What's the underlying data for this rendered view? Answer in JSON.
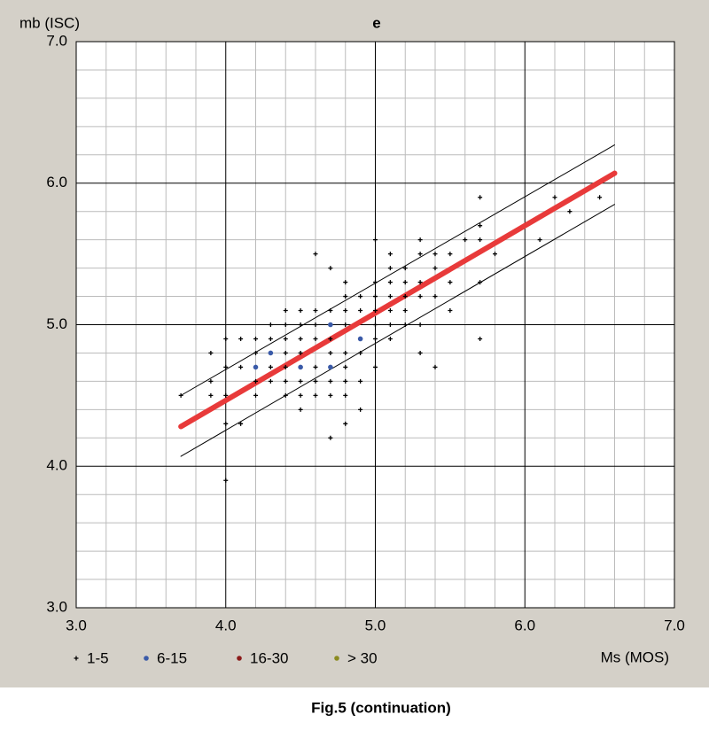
{
  "chart_data": {
    "type": "scatter",
    "title": "e",
    "y_label": "mb (ISC)",
    "x_label": "Ms (MOS)",
    "caption": "Fig.5 (continuation)",
    "xlim": [
      3.0,
      7.0
    ],
    "ylim": [
      3.0,
      7.0
    ],
    "xticks": [
      {
        "value": 3,
        "label": "3.0"
      },
      {
        "value": 4,
        "label": "4.0"
      },
      {
        "value": 5,
        "label": "5.0"
      },
      {
        "value": 6,
        "label": "6.0"
      },
      {
        "value": 7,
        "label": "7.0"
      }
    ],
    "yticks": [
      {
        "value": 3,
        "label": "3.0"
      },
      {
        "value": 4,
        "label": "4.0"
      },
      {
        "value": 5,
        "label": "5.0"
      },
      {
        "value": 6,
        "label": "6.0"
      },
      {
        "value": 7,
        "label": "7.0"
      }
    ],
    "xminorticks": [
      3.2,
      3.4,
      3.6,
      3.8,
      4.2,
      4.4,
      4.6,
      4.8,
      5.2,
      5.4,
      5.6,
      5.8,
      6.2,
      6.4,
      6.6,
      6.8
    ],
    "yminorticks": [
      3.2,
      3.4,
      3.6,
      3.8,
      4.2,
      4.4,
      4.6,
      4.8,
      5.2,
      5.4,
      5.6,
      5.8,
      6.2,
      6.4,
      6.6,
      6.8
    ],
    "grid": true,
    "series": [
      {
        "name": "1-5",
        "color": "#000000",
        "marker": "plus",
        "x": [
          3.7,
          3.9,
          3.9,
          3.9,
          4.0,
          4.0,
          4.0,
          4.0,
          4.0,
          4.1,
          4.1,
          4.1,
          4.2,
          4.2,
          4.2,
          4.2,
          4.3,
          4.3,
          4.3,
          4.3,
          4.4,
          4.4,
          4.4,
          4.4,
          4.4,
          4.4,
          4.4,
          4.5,
          4.5,
          4.5,
          4.5,
          4.5,
          4.5,
          4.5,
          4.6,
          4.6,
          4.6,
          4.6,
          4.6,
          4.6,
          4.6,
          4.7,
          4.7,
          4.7,
          4.7,
          4.7,
          4.7,
          4.7,
          4.8,
          4.8,
          4.8,
          4.8,
          4.8,
          4.8,
          4.8,
          4.8,
          4.8,
          4.9,
          4.9,
          4.9,
          4.9,
          4.9,
          5.0,
          5.0,
          5.0,
          5.0,
          5.0,
          5.0,
          5.0,
          5.1,
          5.1,
          5.1,
          5.1,
          5.1,
          5.1,
          5.1,
          5.2,
          5.2,
          5.2,
          5.2,
          5.2,
          5.3,
          5.3,
          5.3,
          5.3,
          5.3,
          5.3,
          5.4,
          5.4,
          5.4,
          5.4,
          5.5,
          5.5,
          5.5,
          5.6,
          5.7,
          5.7,
          5.7,
          5.7,
          5.7,
          5.8,
          6.1,
          6.2,
          6.3,
          6.5
        ],
        "values": [
          4.5,
          4.8,
          4.6,
          4.5,
          4.9,
          4.7,
          4.5,
          4.3,
          3.9,
          4.9,
          4.7,
          4.3,
          4.9,
          4.8,
          4.5,
          4.6,
          5.0,
          4.9,
          4.7,
          4.6,
          5.1,
          5.0,
          4.9,
          4.8,
          4.7,
          4.6,
          4.5,
          5.1,
          5.0,
          4.9,
          4.8,
          4.6,
          4.5,
          4.4,
          5.5,
          5.1,
          5.0,
          4.9,
          4.7,
          4.6,
          4.5,
          5.4,
          5.1,
          4.9,
          4.8,
          4.6,
          4.5,
          4.2,
          5.3,
          5.2,
          5.1,
          5.0,
          4.8,
          4.7,
          4.6,
          4.5,
          4.3,
          5.2,
          5.1,
          4.8,
          4.6,
          4.4,
          5.6,
          5.3,
          5.2,
          5.1,
          5.0,
          4.9,
          4.7,
          5.5,
          5.4,
          5.3,
          5.2,
          5.1,
          5.0,
          4.9,
          5.4,
          5.3,
          5.2,
          5.1,
          5.0,
          5.6,
          5.5,
          5.3,
          5.2,
          5.0,
          4.8,
          5.5,
          5.4,
          5.2,
          4.7,
          5.5,
          5.3,
          5.1,
          5.6,
          5.9,
          5.7,
          5.6,
          5.3,
          4.9,
          5.5,
          5.6,
          5.9,
          5.8,
          5.9
        ]
      },
      {
        "name": "6-15",
        "color": "#3a5aa8",
        "marker": "dot",
        "x": [
          4.2,
          4.3,
          4.5,
          4.7,
          4.7,
          4.9
        ],
        "values": [
          4.7,
          4.8,
          4.7,
          5.0,
          4.7,
          4.9
        ]
      },
      {
        "name": "16-30",
        "color": "#8b1a1a",
        "marker": "dot",
        "x": [],
        "values": []
      },
      {
        "name": "> 30",
        "color": "#8b8b20",
        "marker": "dot",
        "x": [],
        "values": []
      }
    ],
    "fit": {
      "x": [
        3.7,
        6.6
      ],
      "values": [
        4.28,
        6.07
      ],
      "color": "#e83a3a"
    },
    "bounds": [
      {
        "x": [
          3.7,
          6.6
        ],
        "values": [
          4.5,
          6.27
        ],
        "color": "#000000"
      },
      {
        "x": [
          3.7,
          6.6
        ],
        "values": [
          4.07,
          5.85
        ],
        "color": "#000000"
      }
    ]
  }
}
